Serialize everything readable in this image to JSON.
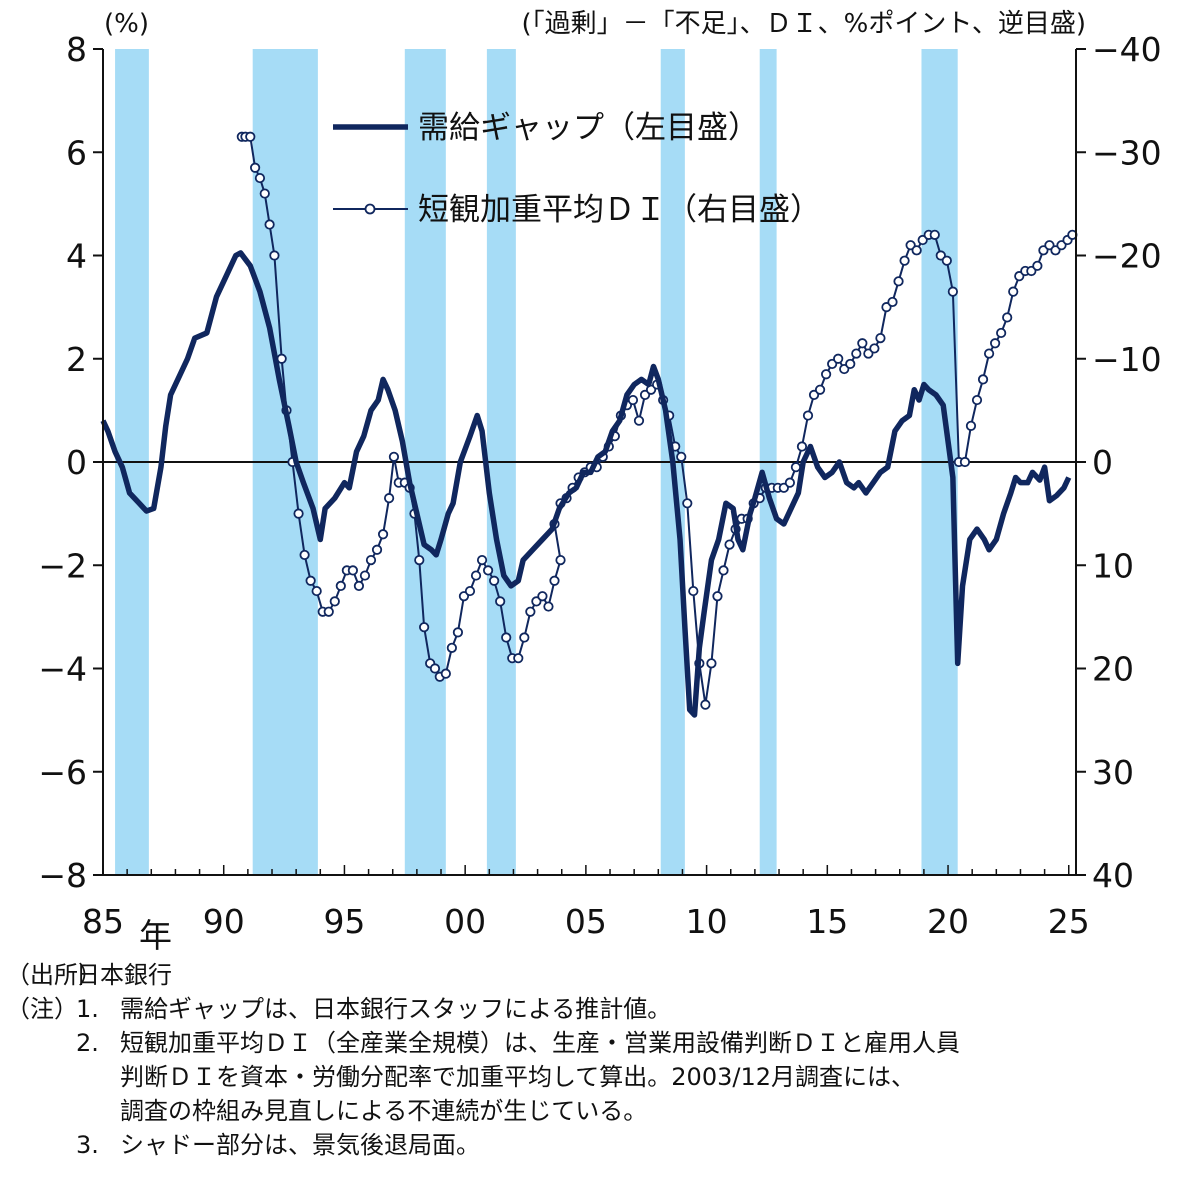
{
  "chart_data": {
    "type": "line",
    "left_unit": "(%)",
    "right_unit": "(「過剰」－「不足」、ＤＩ、%ポイント、逆目盛)",
    "x_suffix": "年",
    "x_ticks": [
      "85",
      "90",
      "95",
      "00",
      "05",
      "10",
      "15",
      "20",
      "25"
    ],
    "x_range": [
      1985,
      2025.3
    ],
    "y_left_range": [
      -8,
      8
    ],
    "y_left_ticks": [
      "8",
      "6",
      "4",
      "2",
      "0",
      "−2",
      "−4",
      "−6",
      "−8"
    ],
    "y_right_range": [
      40,
      -40
    ],
    "y_right_reversed": true,
    "y_right_ticks": [
      "−40",
      "−30",
      "−20",
      "−10",
      "0",
      "10",
      "20",
      "30",
      "40"
    ],
    "grid": false,
    "legend_position": "top-center",
    "shading_color": "#a6dcf6",
    "recession_periods": [
      [
        1985.5,
        1986.9
      ],
      [
        1991.2,
        1993.9
      ],
      [
        1997.5,
        1999.2
      ],
      [
        2000.9,
        2002.1
      ],
      [
        2008.1,
        2009.1
      ],
      [
        2012.2,
        2012.9
      ],
      [
        2018.9,
        2020.4
      ]
    ],
    "series": [
      {
        "name": "需給ギャップ（左目盛）",
        "axis": "left",
        "color": "#10275e",
        "style": "thick",
        "points": [
          [
            1985.0,
            0.8
          ],
          [
            1985.2,
            0.6
          ],
          [
            1985.5,
            0.2
          ],
          [
            1985.8,
            -0.1
          ],
          [
            1986.1,
            -0.6
          ],
          [
            1986.5,
            -0.8
          ],
          [
            1986.8,
            -0.95
          ],
          [
            1987.1,
            -0.9
          ],
          [
            1987.4,
            -0.1
          ],
          [
            1987.6,
            0.7
          ],
          [
            1987.8,
            1.3
          ],
          [
            1988.1,
            1.6
          ],
          [
            1988.5,
            2.0
          ],
          [
            1988.8,
            2.4
          ],
          [
            1989.3,
            2.5
          ],
          [
            1989.7,
            3.2
          ],
          [
            1990.1,
            3.6
          ],
          [
            1990.5,
            4.0
          ],
          [
            1990.7,
            4.05
          ],
          [
            1991.1,
            3.8
          ],
          [
            1991.5,
            3.3
          ],
          [
            1991.9,
            2.6
          ],
          [
            1992.3,
            1.6
          ],
          [
            1992.7,
            0.7
          ],
          [
            1993.0,
            0.0
          ],
          [
            1993.3,
            -0.4
          ],
          [
            1993.7,
            -0.9
          ],
          [
            1994.0,
            -1.5
          ],
          [
            1994.2,
            -0.9
          ],
          [
            1994.6,
            -0.7
          ],
          [
            1995.0,
            -0.4
          ],
          [
            1995.2,
            -0.5
          ],
          [
            1995.5,
            0.2
          ],
          [
            1995.8,
            0.5
          ],
          [
            1996.1,
            1.0
          ],
          [
            1996.4,
            1.2
          ],
          [
            1996.6,
            1.6
          ],
          [
            1996.8,
            1.4
          ],
          [
            1997.1,
            1.0
          ],
          [
            1997.4,
            0.4
          ],
          [
            1997.7,
            -0.4
          ],
          [
            1998.0,
            -1.0
          ],
          [
            1998.3,
            -1.6
          ],
          [
            1998.6,
            -1.7
          ],
          [
            1998.8,
            -1.8
          ],
          [
            1999.0,
            -1.5
          ],
          [
            1999.3,
            -1.0
          ],
          [
            1999.5,
            -0.8
          ],
          [
            1999.8,
            0.0
          ],
          [
            2000.2,
            0.5
          ],
          [
            2000.5,
            0.9
          ],
          [
            2000.7,
            0.6
          ],
          [
            2001.0,
            -0.6
          ],
          [
            2001.3,
            -1.5
          ],
          [
            2001.6,
            -2.2
          ],
          [
            2001.9,
            -2.4
          ],
          [
            2002.2,
            -2.3
          ],
          [
            2002.4,
            -1.9
          ],
          [
            2002.8,
            -1.7
          ],
          [
            2003.2,
            -1.5
          ],
          [
            2003.6,
            -1.3
          ],
          [
            2003.9,
            -0.9
          ],
          [
            2004.3,
            -0.6
          ],
          [
            2004.6,
            -0.5
          ],
          [
            2004.9,
            -0.2
          ],
          [
            2005.2,
            -0.2
          ],
          [
            2005.5,
            0.1
          ],
          [
            2005.8,
            0.2
          ],
          [
            2006.1,
            0.6
          ],
          [
            2006.4,
            0.8
          ],
          [
            2006.7,
            1.3
          ],
          [
            2007.0,
            1.5
          ],
          [
            2007.3,
            1.6
          ],
          [
            2007.6,
            1.5
          ],
          [
            2007.8,
            1.85
          ],
          [
            2008.0,
            1.6
          ],
          [
            2008.3,
            1.0
          ],
          [
            2008.6,
            0.0
          ],
          [
            2008.9,
            -1.5
          ],
          [
            2009.1,
            -3.2
          ],
          [
            2009.3,
            -4.8
          ],
          [
            2009.5,
            -4.9
          ],
          [
            2009.7,
            -3.6
          ],
          [
            2009.9,
            -2.9
          ],
          [
            2010.2,
            -1.9
          ],
          [
            2010.5,
            -1.5
          ],
          [
            2010.8,
            -0.8
          ],
          [
            2011.1,
            -0.9
          ],
          [
            2011.3,
            -1.5
          ],
          [
            2011.5,
            -1.7
          ],
          [
            2011.8,
            -1.0
          ],
          [
            2012.0,
            -0.7
          ],
          [
            2012.3,
            -0.2
          ],
          [
            2012.6,
            -0.7
          ],
          [
            2012.9,
            -1.1
          ],
          [
            2013.2,
            -1.2
          ],
          [
            2013.5,
            -0.9
          ],
          [
            2013.8,
            -0.6
          ],
          [
            2014.0,
            0.0
          ],
          [
            2014.3,
            0.3
          ],
          [
            2014.6,
            -0.1
          ],
          [
            2014.9,
            -0.3
          ],
          [
            2015.2,
            -0.2
          ],
          [
            2015.5,
            0.0
          ],
          [
            2015.8,
            -0.4
          ],
          [
            2016.1,
            -0.5
          ],
          [
            2016.3,
            -0.4
          ],
          [
            2016.6,
            -0.6
          ],
          [
            2016.9,
            -0.4
          ],
          [
            2017.2,
            -0.2
          ],
          [
            2017.5,
            -0.1
          ],
          [
            2017.8,
            0.6
          ],
          [
            2018.1,
            0.8
          ],
          [
            2018.4,
            0.9
          ],
          [
            2018.6,
            1.4
          ],
          [
            2018.8,
            1.2
          ],
          [
            2019.0,
            1.5
          ],
          [
            2019.2,
            1.4
          ],
          [
            2019.5,
            1.3
          ],
          [
            2019.8,
            1.1
          ],
          [
            2020.0,
            0.4
          ],
          [
            2020.2,
            -0.3
          ],
          [
            2020.4,
            -3.9
          ],
          [
            2020.6,
            -2.4
          ],
          [
            2020.9,
            -1.5
          ],
          [
            2021.2,
            -1.3
          ],
          [
            2021.5,
            -1.5
          ],
          [
            2021.7,
            -1.7
          ],
          [
            2022.0,
            -1.5
          ],
          [
            2022.3,
            -1.0
          ],
          [
            2022.6,
            -0.6
          ],
          [
            2022.8,
            -0.3
          ],
          [
            2023.0,
            -0.4
          ],
          [
            2023.3,
            -0.4
          ],
          [
            2023.5,
            -0.2
          ],
          [
            2023.8,
            -0.35
          ],
          [
            2024.0,
            -0.1
          ],
          [
            2024.2,
            -0.75
          ],
          [
            2024.5,
            -0.65
          ],
          [
            2024.8,
            -0.5
          ],
          [
            2025.0,
            -0.3
          ]
        ]
      },
      {
        "name": "短観加重平均ＤＩ（右目盛）",
        "axis": "right",
        "color": "#10275e",
        "style": "thin-markers",
        "points": [
          [
            1990.75,
            -31.5
          ],
          [
            1990.9,
            -31.5
          ],
          [
            1991.1,
            -31.5
          ],
          [
            1991.3,
            -28.5
          ],
          [
            1991.5,
            -27.5
          ],
          [
            1991.7,
            -26.0
          ],
          [
            1991.9,
            -23.0
          ],
          [
            1992.1,
            -20.0
          ],
          [
            1992.4,
            -10.0
          ],
          [
            1992.6,
            -5.0
          ],
          [
            1992.85,
            0.0
          ],
          [
            1993.1,
            5.0
          ],
          [
            1993.35,
            9.0
          ],
          [
            1993.6,
            11.5
          ],
          [
            1993.85,
            12.5
          ],
          [
            1994.1,
            14.5
          ],
          [
            1994.35,
            14.5
          ],
          [
            1994.6,
            13.5
          ],
          [
            1994.85,
            12.0
          ],
          [
            1995.1,
            10.5
          ],
          [
            1995.35,
            10.5
          ],
          [
            1995.6,
            12.0
          ],
          [
            1995.85,
            11.0
          ],
          [
            1996.1,
            9.5
          ],
          [
            1996.35,
            8.5
          ],
          [
            1996.6,
            7.0
          ],
          [
            1996.85,
            3.5
          ],
          [
            1997.05,
            -0.5
          ],
          [
            1997.25,
            2.0
          ],
          [
            1997.5,
            2.0
          ],
          [
            1997.7,
            2.5
          ],
          [
            1997.9,
            5.0
          ],
          [
            1998.1,
            9.5
          ],
          [
            1998.3,
            16.0
          ],
          [
            1998.55,
            19.5
          ],
          [
            1998.75,
            20.0
          ],
          [
            1998.95,
            20.8
          ],
          [
            1999.2,
            20.5
          ],
          [
            1999.45,
            18.0
          ],
          [
            1999.7,
            16.5
          ],
          [
            1999.95,
            13.0
          ],
          [
            2000.2,
            12.5
          ],
          [
            2000.45,
            11.0
          ],
          [
            2000.7,
            9.5
          ],
          [
            2000.95,
            10.5
          ],
          [
            2001.2,
            11.5
          ],
          [
            2001.45,
            13.5
          ],
          [
            2001.7,
            17.0
          ],
          [
            2001.95,
            19.0
          ],
          [
            2002.2,
            19.0
          ],
          [
            2002.45,
            17.0
          ],
          [
            2002.7,
            14.5
          ],
          [
            2002.95,
            13.5
          ],
          [
            2003.2,
            13.0
          ],
          [
            2003.45,
            14.0
          ],
          [
            2003.7,
            11.5
          ],
          [
            2003.95,
            9.5
          ],
          [
            2003.7,
            6.0
          ],
          [
            2003.95,
            4.0
          ],
          [
            2004.2,
            3.5
          ],
          [
            2004.45,
            2.5
          ],
          [
            2004.7,
            1.5
          ],
          [
            2004.95,
            1.0
          ],
          [
            2005.2,
            0.5
          ],
          [
            2005.45,
            0.5
          ],
          [
            2005.7,
            -0.5
          ],
          [
            2005.95,
            -1.5
          ],
          [
            2006.2,
            -2.5
          ],
          [
            2006.45,
            -4.5
          ],
          [
            2006.7,
            -5.5
          ],
          [
            2006.95,
            -6.0
          ],
          [
            2007.2,
            -4.0
          ],
          [
            2007.45,
            -6.5
          ],
          [
            2007.7,
            -7.0
          ],
          [
            2007.95,
            -7.5
          ],
          [
            2008.2,
            -6.0
          ],
          [
            2008.45,
            -4.5
          ],
          [
            2008.7,
            -1.5
          ],
          [
            2008.95,
            -0.5
          ],
          [
            2009.2,
            4.0
          ],
          [
            2009.45,
            12.5
          ],
          [
            2009.7,
            19.5
          ],
          [
            2009.95,
            23.5
          ],
          [
            2010.2,
            19.5
          ],
          [
            2010.45,
            13.0
          ],
          [
            2010.7,
            10.5
          ],
          [
            2010.95,
            8.0
          ],
          [
            2011.2,
            6.5
          ],
          [
            2011.45,
            5.5
          ],
          [
            2011.7,
            5.5
          ],
          [
            2011.95,
            4.0
          ],
          [
            2012.2,
            3.5
          ],
          [
            2012.45,
            2.5
          ],
          [
            2012.7,
            2.5
          ],
          [
            2012.95,
            2.5
          ],
          [
            2013.2,
            2.5
          ],
          [
            2013.45,
            2.0
          ],
          [
            2013.7,
            0.5
          ],
          [
            2013.95,
            -1.5
          ],
          [
            2014.2,
            -4.5
          ],
          [
            2014.45,
            -6.5
          ],
          [
            2014.7,
            -7.0
          ],
          [
            2014.95,
            -8.5
          ],
          [
            2015.2,
            -9.5
          ],
          [
            2015.45,
            -10.0
          ],
          [
            2015.7,
            -9.0
          ],
          [
            2015.95,
            -9.5
          ],
          [
            2016.2,
            -10.5
          ],
          [
            2016.45,
            -11.5
          ],
          [
            2016.7,
            -10.5
          ],
          [
            2016.95,
            -11.0
          ],
          [
            2017.2,
            -12.0
          ],
          [
            2017.45,
            -15.0
          ],
          [
            2017.7,
            -15.5
          ],
          [
            2017.95,
            -17.5
          ],
          [
            2018.2,
            -19.5
          ],
          [
            2018.45,
            -21.0
          ],
          [
            2018.7,
            -20.5
          ],
          [
            2018.95,
            -21.5
          ],
          [
            2019.2,
            -22.0
          ],
          [
            2019.45,
            -22.0
          ],
          [
            2019.7,
            -20.0
          ],
          [
            2019.95,
            -19.5
          ],
          [
            2020.2,
            -16.5
          ],
          [
            2020.45,
            0.0
          ],
          [
            2020.7,
            0.0
          ],
          [
            2020.95,
            -3.5
          ],
          [
            2021.2,
            -6.0
          ],
          [
            2021.45,
            -8.0
          ],
          [
            2021.7,
            -10.5
          ],
          [
            2021.95,
            -11.5
          ],
          [
            2022.2,
            -12.5
          ],
          [
            2022.45,
            -14.0
          ],
          [
            2022.7,
            -16.5
          ],
          [
            2022.95,
            -18.0
          ],
          [
            2023.2,
            -18.5
          ],
          [
            2023.45,
            -18.5
          ],
          [
            2023.7,
            -19.0
          ],
          [
            2023.95,
            -20.5
          ],
          [
            2024.2,
            -21.0
          ],
          [
            2024.45,
            -20.5
          ],
          [
            2024.7,
            -21.0
          ],
          [
            2024.95,
            -21.5
          ],
          [
            2025.15,
            -22.0
          ]
        ]
      }
    ]
  },
  "notes": {
    "source_head": "（出所）",
    "source_text": "日本銀行",
    "note_head": "（注）",
    "items": [
      {
        "num": "1.",
        "lines": [
          "需給ギャップは、日本銀行スタッフによる推計値。"
        ]
      },
      {
        "num": "2.",
        "lines": [
          "短観加重平均ＤＩ（全産業全規模）は、生産・営業用設備判断ＤＩと雇用人員",
          "判断ＤＩを資本・労働分配率で加重平均して算出。2003/12月調査には、",
          "調査の枠組み見直しによる不連続が生じている。"
        ]
      },
      {
        "num": "3.",
        "lines": [
          "シャドー部分は、景気後退局面。"
        ]
      }
    ]
  }
}
